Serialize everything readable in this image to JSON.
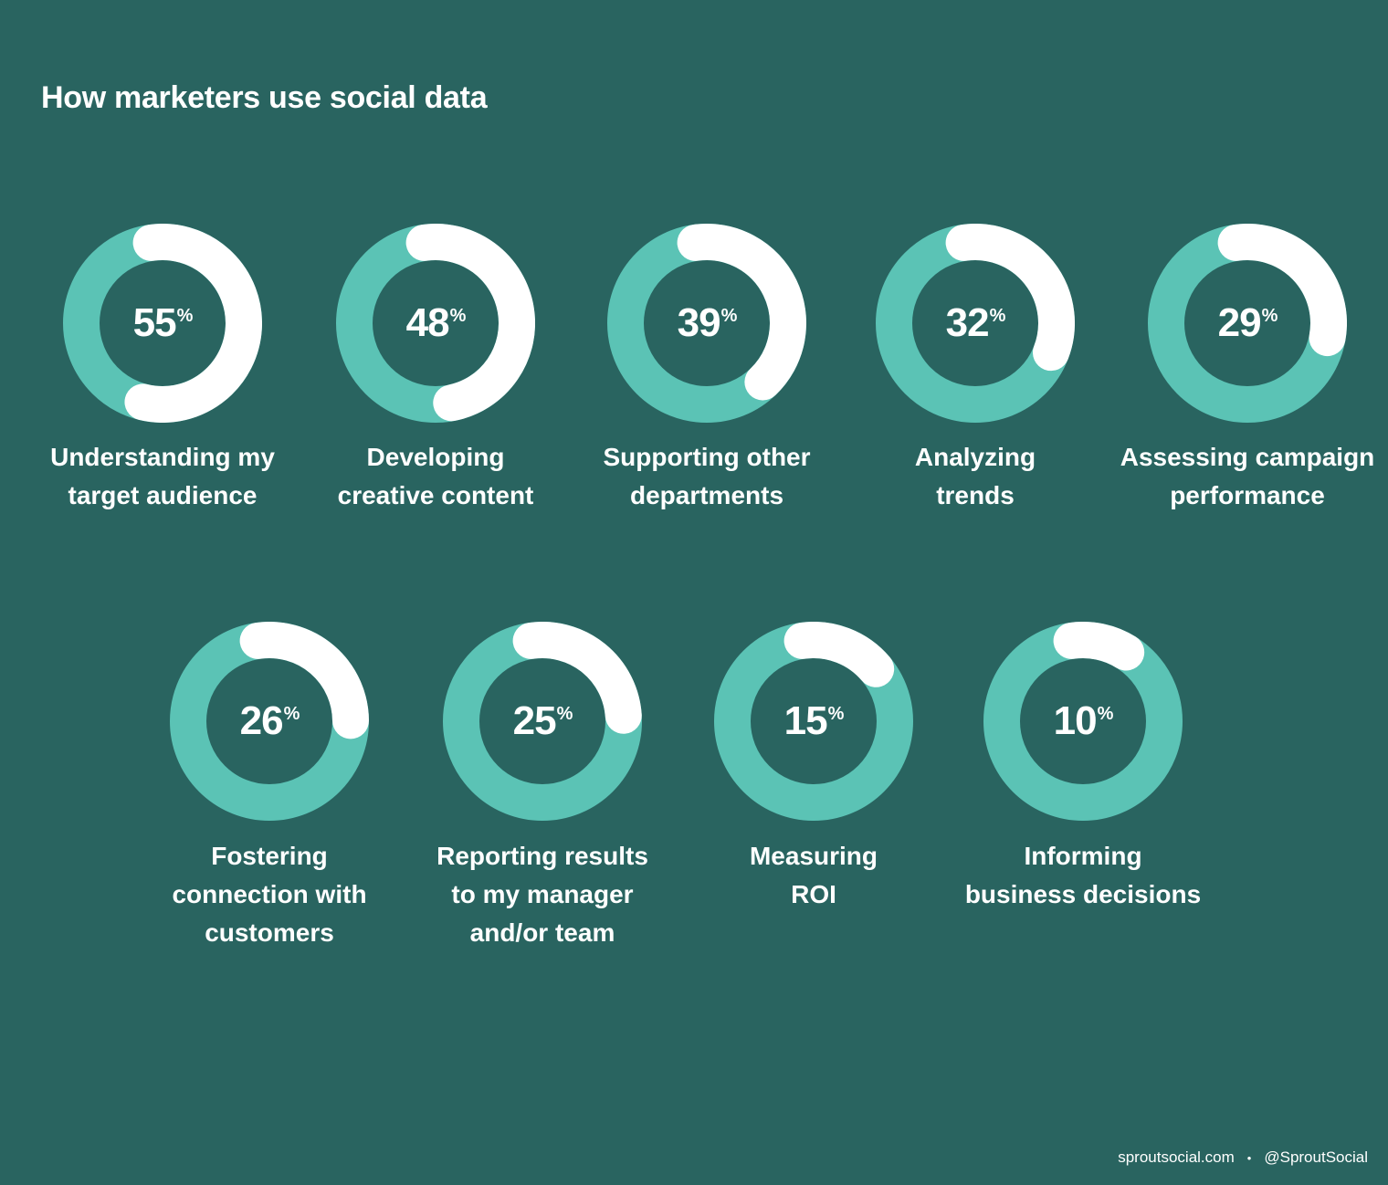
{
  "page": {
    "title": "How marketers use social data",
    "footer": {
      "site": "sproutsocial.com",
      "separator": "•",
      "handle": "@SproutSocial"
    }
  },
  "colors": {
    "background": "#296460",
    "ring_track": "#5bc3b5",
    "ring_fill": "#ffffff",
    "text": "#ffffff"
  },
  "chart_data": {
    "type": "donut",
    "title": "How marketers use social data",
    "unit": "%",
    "items": [
      {
        "label": "Understanding my\ntarget audience",
        "value": 55
      },
      {
        "label": "Developing\ncreative content",
        "value": 48
      },
      {
        "label": "Supporting other\ndepartments",
        "value": 39
      },
      {
        "label": "Analyzing\ntrends",
        "value": 32
      },
      {
        "label": "Assessing campaign\nperformance",
        "value": 29
      },
      {
        "label": "Fostering\nconnection with\ncustomers",
        "value": 26
      },
      {
        "label": "Reporting results\nto my manager\nand/or team",
        "value": 25
      },
      {
        "label": "Measuring\nROI",
        "value": 15
      },
      {
        "label": "Informing\nbusiness decisions",
        "value": 10
      }
    ]
  }
}
